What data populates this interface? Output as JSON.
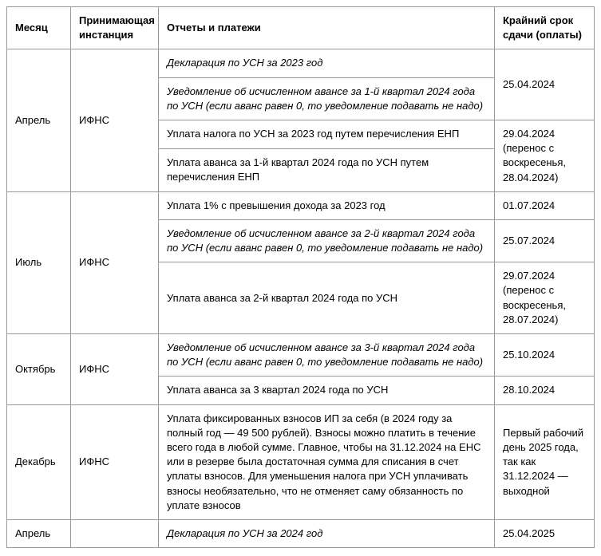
{
  "headers": {
    "month": "Месяц",
    "authority": "Принимающая инстанция",
    "report": "Отчеты и платежи",
    "deadline": "Крайний срок сдачи (оплаты)"
  },
  "sections": [
    {
      "month": "Апрель",
      "authority": "ИФНС",
      "rows": [
        {
          "report": "Декларация по УСН за 2023 год",
          "italic": true,
          "deadline": "25.04.2024",
          "deadlineRowspan": 2
        },
        {
          "report": "Уведомление об исчисленном авансе за 1-й квартал 2024 года по УСН (если аванс равен 0, то уведомление подавать не надо)",
          "italic": true
        },
        {
          "report": "Уплата налога по УСН за 2023 год путем перечисления ЕНП",
          "italic": false,
          "deadline": "29.04.2024 (перенос с воскресенья, 28.04.2024)",
          "deadlineRowspan": 2
        },
        {
          "report": "Уплата аванса за 1-й квартал 2024 года по УСН путем перечисления ЕНП",
          "italic": false
        }
      ]
    },
    {
      "month": "Июль",
      "authority": "ИФНС",
      "rows": [
        {
          "report": "Уплата 1% с превышения дохода за 2023 год",
          "italic": false,
          "deadline": "01.07.2024",
          "deadlineRowspan": 1
        },
        {
          "report": "Уведомление об исчисленном авансе за 2-й квартал 2024 года по УСН (если аванс равен 0, то уведомление подавать не надо)",
          "italic": true,
          "deadline": "25.07.2024",
          "deadlineRowspan": 1
        },
        {
          "report": "Уплата аванса за 2-й квартал 2024 года по УСН",
          "italic": false,
          "deadline": "29.07.2024 (перенос с воскресенья, 28.07.2024)",
          "deadlineRowspan": 1
        }
      ]
    },
    {
      "month": "Октябрь",
      "authority": "ИФНС",
      "rows": [
        {
          "report": "Уведомление об исчисленном авансе за 3-й квартал 2024 года по УСН (если аванс равен 0, то уведомление подавать не надо)",
          "italic": true,
          "deadline": "25.10.2024",
          "deadlineRowspan": 1
        },
        {
          "report": "Уплата аванса за 3 квартал 2024 года по УСН",
          "italic": false,
          "deadline": "28.10.2024",
          "deadlineRowspan": 1
        }
      ]
    },
    {
      "month": "Декабрь",
      "authority": "ИФНС",
      "rows": [
        {
          "report": "Уплата фиксированных взносов ИП за себя (в 2024 году за полный год — 49 500 рублей). Взносы можно платить в течение всего года в любой сумме. Главное, чтобы на 31.12.2024 на ЕНС или в резерве была достаточная сумма для списания в счет уплаты взносов. Для уменьшения налога при УСН уплачивать взносы необязательно, что не отменяет саму обязанность по уплате взносов",
          "italic": false,
          "deadline": "Первый рабочий день 2025 года, так как 31.12.2024 — выходной",
          "deadlineRowspan": 1
        }
      ]
    },
    {
      "month": "Апрель",
      "authority": "",
      "rows": [
        {
          "report": "Декларация по УСН за 2024 год",
          "italic": true,
          "deadline": "25.04.2025",
          "deadlineRowspan": 1
        }
      ]
    }
  ]
}
